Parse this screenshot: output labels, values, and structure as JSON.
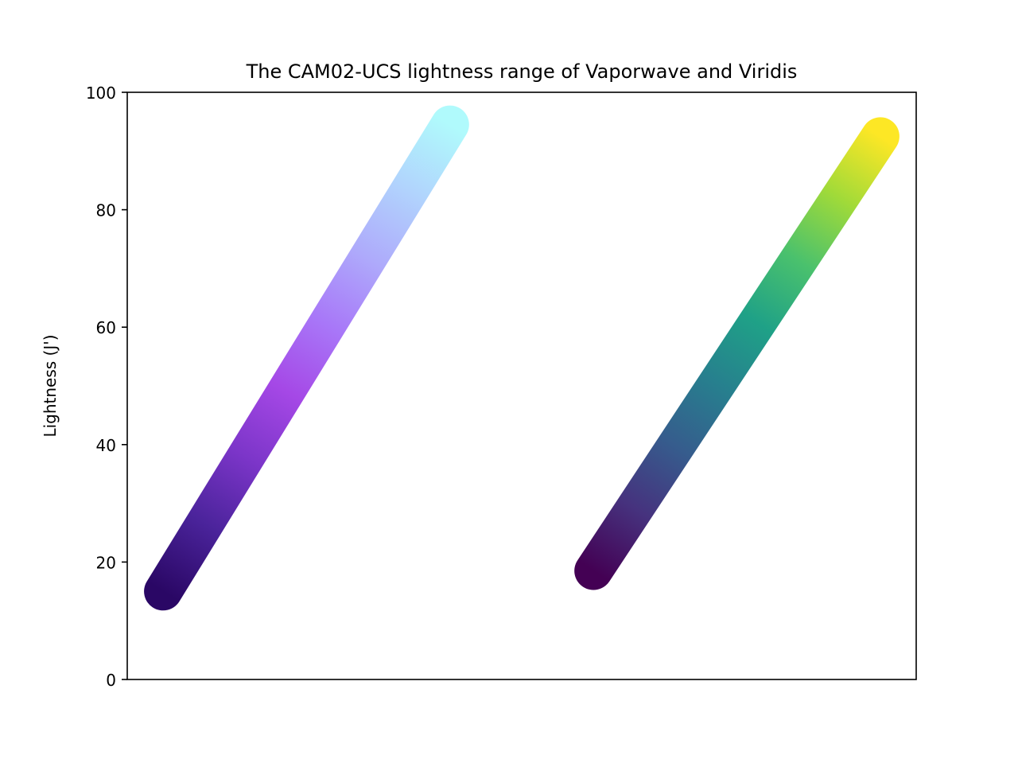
{
  "chart_data": {
    "type": "line",
    "title": "The CAM02-UCS lightness range of Vaporwave and Viridis",
    "xlabel": "",
    "ylabel": "Lightness (J')",
    "ylim": [
      0,
      100
    ],
    "yticks": [
      "0",
      "20",
      "40",
      "60",
      "80",
      "100"
    ],
    "grid": false,
    "legend": "none",
    "series": [
      {
        "colormap": "vaporwave",
        "x": [
          0,
          1
        ],
        "values": [
          15,
          94.5
        ],
        "color_stops": [
          "#2a0765",
          "#4a239a",
          "#7b35c8",
          "#a548e6",
          "#a877f8",
          "#aeaafb",
          "#b1d3fd",
          "#b0fafc"
        ]
      },
      {
        "colormap": "viridis",
        "x": [
          1.5,
          2.5
        ],
        "values": [
          18.5,
          92.5
        ],
        "color_stops": [
          "#440154",
          "#46327e",
          "#365c8d",
          "#277f8e",
          "#1fa187",
          "#4ac16d",
          "#a0da39",
          "#fde725"
        ]
      }
    ]
  }
}
